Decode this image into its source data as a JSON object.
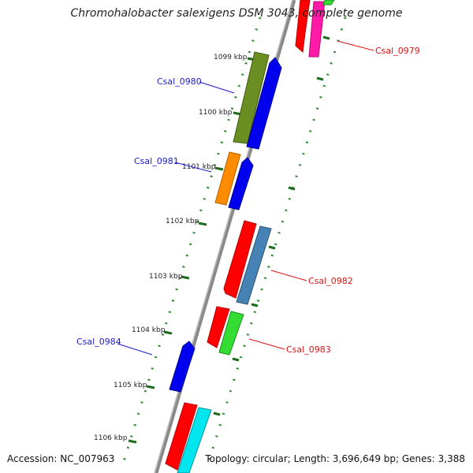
{
  "title": "Chromohalobacter salexigens DSM 3043, complete genome",
  "footer": {
    "accession": "Accession: NC_007963",
    "summary": "Topology: circular; Length: 3,696,649 bp; Genes: 3,388"
  },
  "ticks": [
    "1099 kbp",
    "1100 kbp",
    "1101 kbp",
    "1102 kbp",
    "1103 kbp",
    "1104 kbp",
    "1105 kbp",
    "1106 kbp"
  ],
  "gene_labels": {
    "csal_0979": "Csal_0979",
    "csal_0980": "Csal_0980",
    "csal_0981": "Csal_0981",
    "csal_0982": "Csal_0982",
    "csal_0983": "Csal_0983",
    "csal_0984": "Csal_0984"
  },
  "colors": {
    "backbone": "#8a8a8a",
    "dots": "#2e8b2e",
    "label_forward": "#1a1acc",
    "label_reverse": "#dd1111",
    "red": "#ff0000",
    "magenta": "#ff1aa8",
    "green": "#33dd33",
    "olive": "#6b8e23",
    "blue": "#0000ee",
    "orange": "#ff8c00",
    "steelblue": "#4682b4",
    "cyan": "#00e5ee"
  }
}
